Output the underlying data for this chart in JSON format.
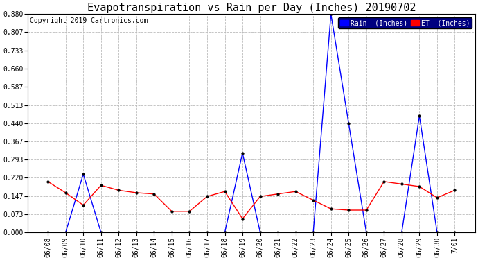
{
  "title": "Evapotranspiration vs Rain per Day (Inches) 20190702",
  "copyright": "Copyright 2019 Cartronics.com",
  "x_labels": [
    "06/08",
    "06/09",
    "06/10",
    "06/11",
    "06/12",
    "06/13",
    "06/14",
    "06/15",
    "06/16",
    "06/17",
    "06/18",
    "06/19",
    "06/20",
    "06/21",
    "06/22",
    "06/23",
    "06/24",
    "06/25",
    "06/26",
    "06/27",
    "06/28",
    "06/29",
    "06/30",
    "7/01"
  ],
  "rain": [
    0.0,
    0.0,
    0.235,
    0.0,
    0.0,
    0.0,
    0.0,
    0.0,
    0.0,
    0.0,
    0.0,
    0.32,
    0.0,
    0.0,
    0.0,
    0.0,
    0.88,
    0.44,
    0.0,
    0.0,
    0.0,
    0.47,
    0.0,
    0.0
  ],
  "et": [
    0.205,
    0.16,
    0.11,
    0.19,
    0.17,
    0.16,
    0.155,
    0.085,
    0.085,
    0.145,
    0.165,
    0.055,
    0.145,
    0.155,
    0.165,
    0.13,
    0.095,
    0.09,
    0.09,
    0.205,
    0.195,
    0.185,
    0.14,
    0.17
  ],
  "ylim": [
    0.0,
    0.88
  ],
  "yticks": [
    0.0,
    0.073,
    0.147,
    0.22,
    0.293,
    0.367,
    0.44,
    0.513,
    0.587,
    0.66,
    0.733,
    0.807,
    0.88
  ],
  "rain_color": "#0000ff",
  "et_color": "#ff0000",
  "bg_color": "#ffffff",
  "grid_color": "#bbbbbb",
  "title_fontsize": 11,
  "copyright_fontsize": 7,
  "tick_fontsize": 7,
  "legend_rain_label": "Rain  (Inches)",
  "legend_et_label": "ET  (Inches)"
}
